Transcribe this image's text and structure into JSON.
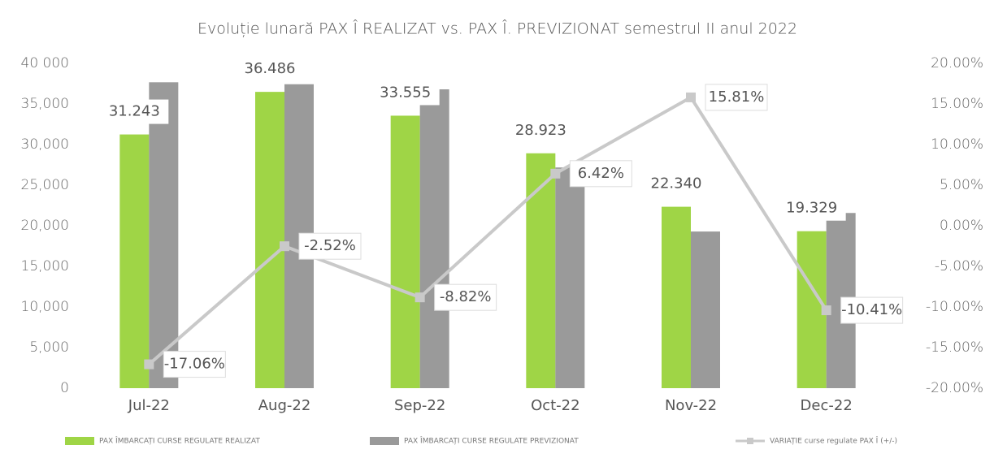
{
  "chart_data": {
    "type": "bar_line",
    "title": "Evoluție lunară PAX Î REALIZAT vs. PAX Î. PREVIZIONAT semestrul II anul 2022",
    "categories": [
      "Jul-22",
      "Aug-22",
      "Sep-22",
      "Oct-22",
      "Nov-22",
      "Dec-22"
    ],
    "series": [
      {
        "name": "PAX ÎMBARCAȚI CURSE REGULATE REALIZAT",
        "color": "#9fd546",
        "type": "bar",
        "values": [
          31243,
          36486,
          33555,
          28923,
          22340,
          19329
        ],
        "value_labels": [
          "31.243",
          "36.486",
          "33.555",
          "28.923",
          "22.340",
          "19.329"
        ]
      },
      {
        "name": "PAX ÎMBARCAȚI CURSE REGULATE PREVIZIONAT",
        "color": "#9a9a9a",
        "type": "bar",
        "values": [
          37669,
          37429,
          36801,
          27178,
          19290,
          21575
        ]
      },
      {
        "name": "VARIAȚIE curse regulate PAX Î (+/-)",
        "color": "#c9c9c9",
        "type": "line",
        "axis": "y2",
        "values": [
          -17.06,
          -2.52,
          -8.82,
          6.42,
          15.81,
          -10.41
        ],
        "value_labels": [
          "-17.06%",
          "-2.52%",
          "-8.82%",
          "6.42%",
          "15.81%",
          "-10.41%"
        ]
      }
    ],
    "ylim": [
      0,
      40000
    ],
    "yticks": [
      0,
      {
        "value": 5000,
        "label": "5,000"
      },
      {
        "value": 10000,
        "label": "10,000"
      },
      {
        "value": 15000,
        "label": "15,000"
      },
      {
        "value": 20000,
        "label": "20,000"
      },
      {
        "value": 25000,
        "label": "25,000"
      },
      {
        "value": 30000,
        "label": "30,000"
      },
      {
        "value": 35000,
        "label": "35,000"
      },
      {
        "value": 40000,
        "label": "40 000"
      }
    ],
    "y2lim": [
      -20,
      20
    ],
    "y2ticks": [
      {
        "value": -20,
        "label": "-20.00%"
      },
      {
        "value": -15,
        "label": "-15.00%"
      },
      {
        "value": -10,
        "label": "-10.00%"
      },
      {
        "value": -5,
        "label": "-5.00%"
      },
      {
        "value": 0,
        "label": "0.00%"
      },
      {
        "value": 5,
        "label": "5.00%"
      },
      {
        "value": 10,
        "label": "10.00%"
      },
      {
        "value": 15,
        "label": "15.00%"
      },
      {
        "value": 20,
        "label": "20.00%"
      }
    ],
    "legend": "bottom"
  }
}
